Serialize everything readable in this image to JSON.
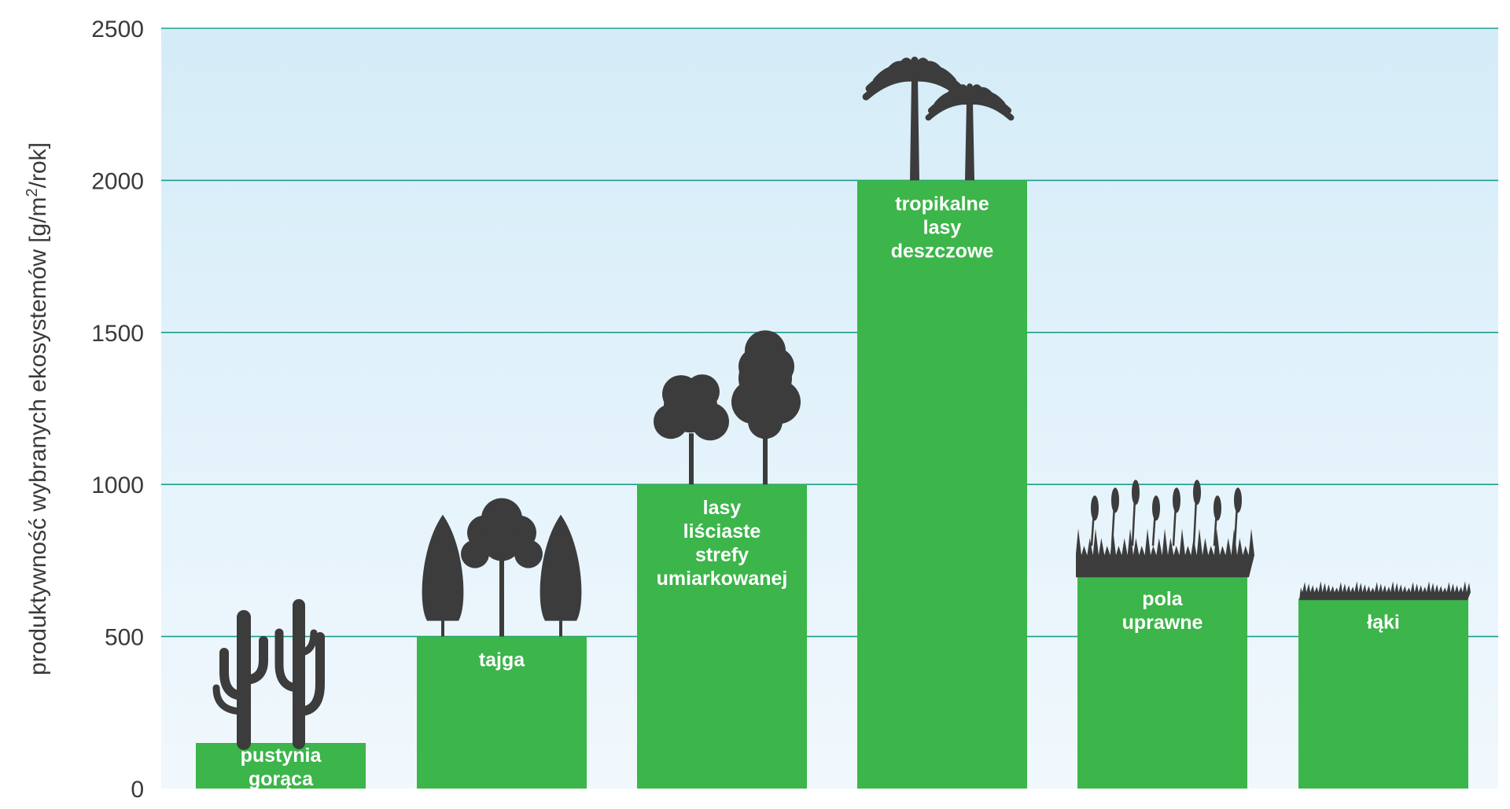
{
  "chart_data": {
    "type": "bar",
    "categories": [
      [
        "pustynia",
        "gorąca"
      ],
      [
        "tajga"
      ],
      [
        "lasy",
        "liściaste",
        "strefy",
        "umiarkowanej"
      ],
      [
        "tropikalne",
        "lasy",
        "deszczowe"
      ],
      [
        "pola",
        "uprawne"
      ],
      [
        "łąki"
      ]
    ],
    "values": [
      150,
      500,
      1000,
      2000,
      700,
      625
    ],
    "icons": [
      "cactus-icon",
      "conifer-tree-icon",
      "deciduous-tree-icon",
      "palm-tree-icon",
      "wheat-icon",
      "grass-icon"
    ],
    "ylabel": "produktywność wybranych ekosystemów [g/m²/rok]",
    "ylabel_parts": {
      "pre": "produktywność wybranych ekosystemów [g/m",
      "sup": "2",
      "post": "/rok]"
    },
    "ylim": [
      0,
      2500
    ],
    "yticks": [
      0,
      500,
      1000,
      1500,
      2000,
      2500
    ],
    "grid": true,
    "colors": {
      "bar": "#3cb54a",
      "grid": "#1a9e8a",
      "background_top": "#d4ecf8",
      "background_bottom": "#f1f8fd",
      "silhouette": "#3c3c3c",
      "text": "#3a3a3a"
    }
  }
}
